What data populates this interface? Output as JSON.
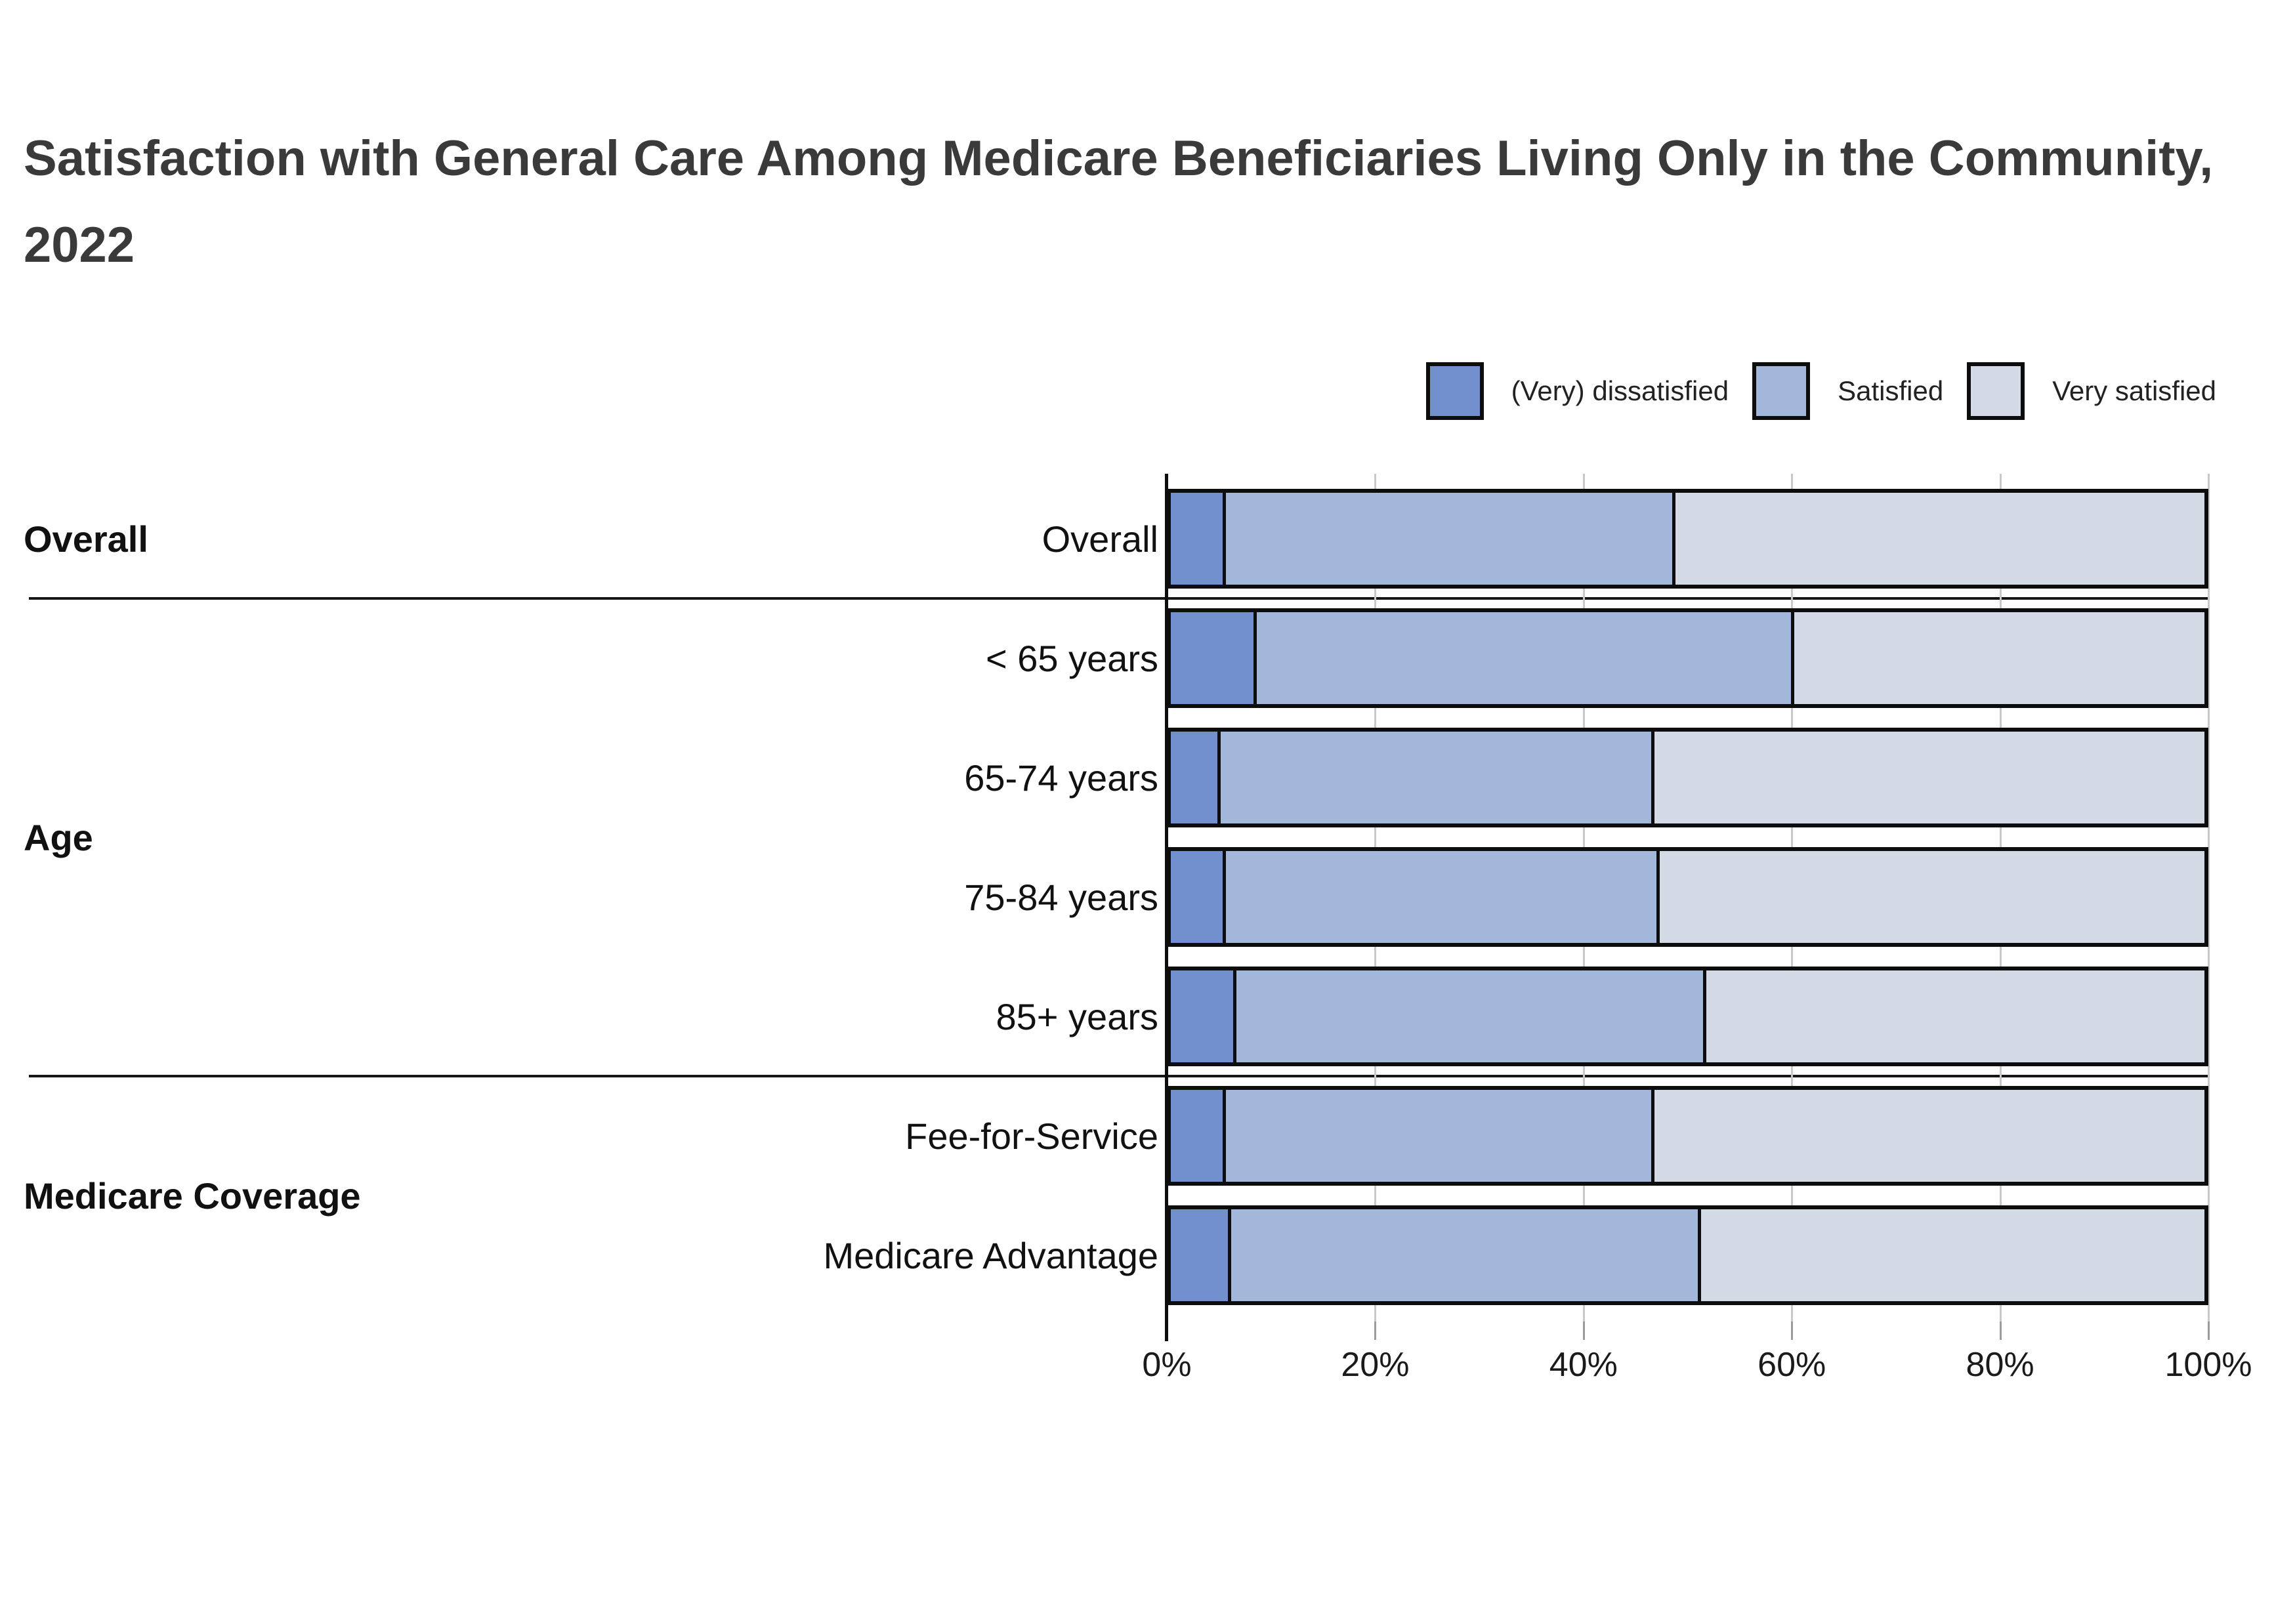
{
  "title": "Satisfaction with General Care Among Medicare Beneficiaries Living Only in the Community, 2022",
  "chart_data": {
    "type": "bar",
    "subtype": "horizontal_stacked_100_percent",
    "title": "Satisfaction with General Care Among Medicare Beneficiaries Living Only in the Community, 2022",
    "values_unit": "percent",
    "legend": {
      "position": "top-right",
      "entries": [
        "(Very) dissatisfied",
        "Satisfied",
        "Very satisfied"
      ]
    },
    "series_colors": [
      "#7190CD",
      "#A3B7DB",
      "#D3DAE5"
    ],
    "style_colors": {
      "segment_border": "#0d0d0d",
      "gridline": "#c9c9c9",
      "tick_gray": "#9b9b9b",
      "axis_black": "#0d0d0d",
      "title_text": "#3a3a3a",
      "label_text": "#111111"
    },
    "x_axis": {
      "range_pct": [
        0,
        100
      ],
      "grid": true,
      "ticks": [
        {
          "label": "0%",
          "value": 0
        },
        {
          "label": "20%",
          "value": 20
        },
        {
          "label": "40%",
          "value": 40
        },
        {
          "label": "60%",
          "value": 60
        },
        {
          "label": "80%",
          "value": 80
        },
        {
          "label": "100%",
          "value": 100
        }
      ]
    },
    "groups": [
      {
        "label": "Overall",
        "first_row": 0,
        "last_row": 0
      },
      {
        "label": "Age",
        "first_row": 1,
        "last_row": 4
      },
      {
        "label": "Medicare Coverage",
        "first_row": 5,
        "last_row": 6
      }
    ],
    "rows": [
      {
        "group": "Overall",
        "label": "Overall",
        "values": [
          5,
          43.5,
          51.5
        ]
      },
      {
        "group": "Age",
        "label": "< 65 years",
        "values": [
          8,
          52,
          40
        ]
      },
      {
        "group": "Age",
        "label": "65-74 years",
        "values": [
          4.5,
          42,
          53.5
        ]
      },
      {
        "group": "Age",
        "label": "75-84 years",
        "values": [
          5,
          42,
          53
        ]
      },
      {
        "group": "Age",
        "label": "85+ years",
        "values": [
          6,
          45.5,
          48.5
        ]
      },
      {
        "group": "Medicare Coverage",
        "label": "Fee-for-Service",
        "values": [
          5,
          41.5,
          53.5
        ]
      },
      {
        "group": "Medicare Coverage",
        "label": "Medicare Advantage",
        "values": [
          5.5,
          45.5,
          49
        ]
      }
    ]
  }
}
